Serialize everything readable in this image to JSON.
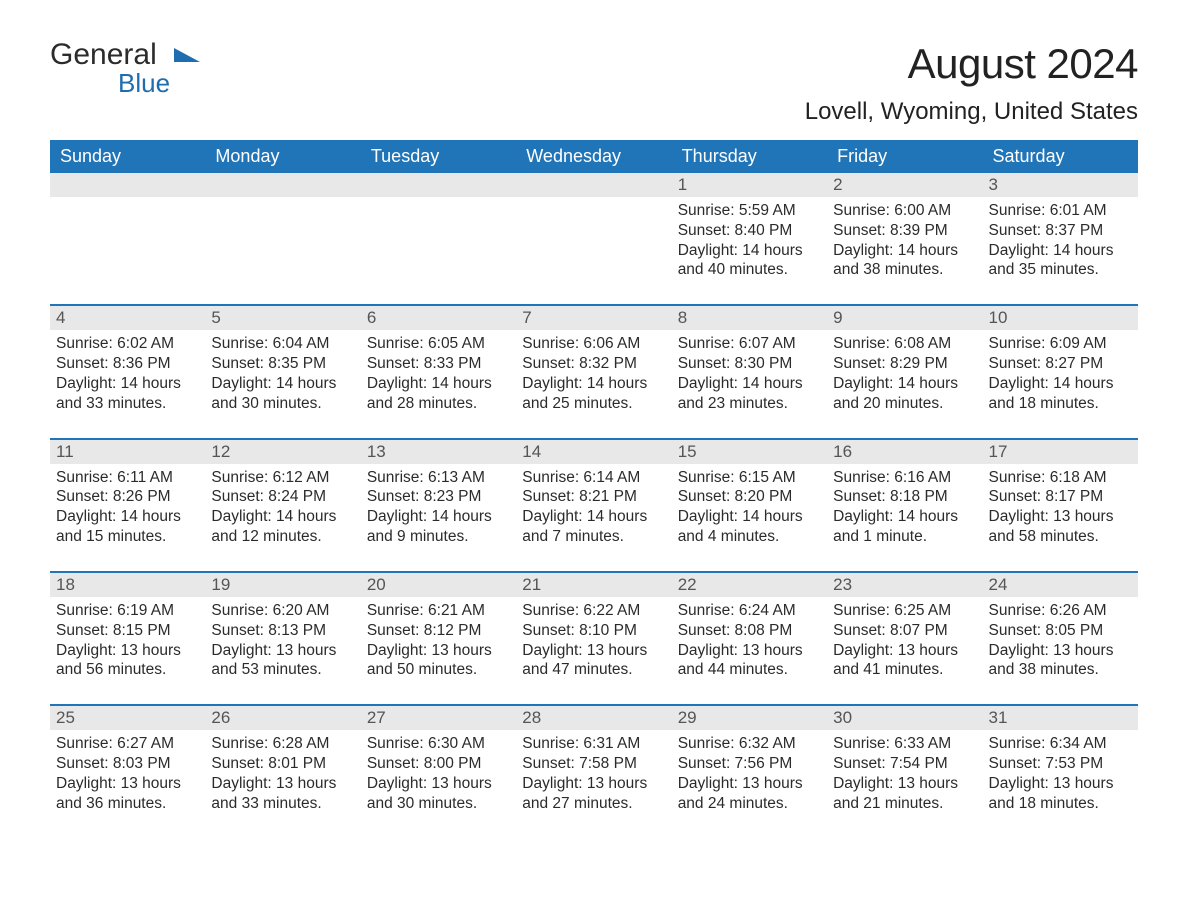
{
  "logo": {
    "line1": "General",
    "line2": "Blue",
    "brand_color": "#1f6db1"
  },
  "title": "August 2024",
  "location": "Lovell, Wyoming, United States",
  "header_bg": "#2074b8",
  "header_fg": "#ffffff",
  "daynum_bg": "#e8e8e8",
  "text_color": "#2b2b2b",
  "days_of_week": [
    "Sunday",
    "Monday",
    "Tuesday",
    "Wednesday",
    "Thursday",
    "Friday",
    "Saturday"
  ],
  "weeks": [
    [
      {
        "n": "",
        "sunrise": "",
        "sunset": "",
        "daylight": ""
      },
      {
        "n": "",
        "sunrise": "",
        "sunset": "",
        "daylight": ""
      },
      {
        "n": "",
        "sunrise": "",
        "sunset": "",
        "daylight": ""
      },
      {
        "n": "",
        "sunrise": "",
        "sunset": "",
        "daylight": ""
      },
      {
        "n": "1",
        "sunrise": "Sunrise: 5:59 AM",
        "sunset": "Sunset: 8:40 PM",
        "daylight": "Daylight: 14 hours and 40 minutes."
      },
      {
        "n": "2",
        "sunrise": "Sunrise: 6:00 AM",
        "sunset": "Sunset: 8:39 PM",
        "daylight": "Daylight: 14 hours and 38 minutes."
      },
      {
        "n": "3",
        "sunrise": "Sunrise: 6:01 AM",
        "sunset": "Sunset: 8:37 PM",
        "daylight": "Daylight: 14 hours and 35 minutes."
      }
    ],
    [
      {
        "n": "4",
        "sunrise": "Sunrise: 6:02 AM",
        "sunset": "Sunset: 8:36 PM",
        "daylight": "Daylight: 14 hours and 33 minutes."
      },
      {
        "n": "5",
        "sunrise": "Sunrise: 6:04 AM",
        "sunset": "Sunset: 8:35 PM",
        "daylight": "Daylight: 14 hours and 30 minutes."
      },
      {
        "n": "6",
        "sunrise": "Sunrise: 6:05 AM",
        "sunset": "Sunset: 8:33 PM",
        "daylight": "Daylight: 14 hours and 28 minutes."
      },
      {
        "n": "7",
        "sunrise": "Sunrise: 6:06 AM",
        "sunset": "Sunset: 8:32 PM",
        "daylight": "Daylight: 14 hours and 25 minutes."
      },
      {
        "n": "8",
        "sunrise": "Sunrise: 6:07 AM",
        "sunset": "Sunset: 8:30 PM",
        "daylight": "Daylight: 14 hours and 23 minutes."
      },
      {
        "n": "9",
        "sunrise": "Sunrise: 6:08 AM",
        "sunset": "Sunset: 8:29 PM",
        "daylight": "Daylight: 14 hours and 20 minutes."
      },
      {
        "n": "10",
        "sunrise": "Sunrise: 6:09 AM",
        "sunset": "Sunset: 8:27 PM",
        "daylight": "Daylight: 14 hours and 18 minutes."
      }
    ],
    [
      {
        "n": "11",
        "sunrise": "Sunrise: 6:11 AM",
        "sunset": "Sunset: 8:26 PM",
        "daylight": "Daylight: 14 hours and 15 minutes."
      },
      {
        "n": "12",
        "sunrise": "Sunrise: 6:12 AM",
        "sunset": "Sunset: 8:24 PM",
        "daylight": "Daylight: 14 hours and 12 minutes."
      },
      {
        "n": "13",
        "sunrise": "Sunrise: 6:13 AM",
        "sunset": "Sunset: 8:23 PM",
        "daylight": "Daylight: 14 hours and 9 minutes."
      },
      {
        "n": "14",
        "sunrise": "Sunrise: 6:14 AM",
        "sunset": "Sunset: 8:21 PM",
        "daylight": "Daylight: 14 hours and 7 minutes."
      },
      {
        "n": "15",
        "sunrise": "Sunrise: 6:15 AM",
        "sunset": "Sunset: 8:20 PM",
        "daylight": "Daylight: 14 hours and 4 minutes."
      },
      {
        "n": "16",
        "sunrise": "Sunrise: 6:16 AM",
        "sunset": "Sunset: 8:18 PM",
        "daylight": "Daylight: 14 hours and 1 minute."
      },
      {
        "n": "17",
        "sunrise": "Sunrise: 6:18 AM",
        "sunset": "Sunset: 8:17 PM",
        "daylight": "Daylight: 13 hours and 58 minutes."
      }
    ],
    [
      {
        "n": "18",
        "sunrise": "Sunrise: 6:19 AM",
        "sunset": "Sunset: 8:15 PM",
        "daylight": "Daylight: 13 hours and 56 minutes."
      },
      {
        "n": "19",
        "sunrise": "Sunrise: 6:20 AM",
        "sunset": "Sunset: 8:13 PM",
        "daylight": "Daylight: 13 hours and 53 minutes."
      },
      {
        "n": "20",
        "sunrise": "Sunrise: 6:21 AM",
        "sunset": "Sunset: 8:12 PM",
        "daylight": "Daylight: 13 hours and 50 minutes."
      },
      {
        "n": "21",
        "sunrise": "Sunrise: 6:22 AM",
        "sunset": "Sunset: 8:10 PM",
        "daylight": "Daylight: 13 hours and 47 minutes."
      },
      {
        "n": "22",
        "sunrise": "Sunrise: 6:24 AM",
        "sunset": "Sunset: 8:08 PM",
        "daylight": "Daylight: 13 hours and 44 minutes."
      },
      {
        "n": "23",
        "sunrise": "Sunrise: 6:25 AM",
        "sunset": "Sunset: 8:07 PM",
        "daylight": "Daylight: 13 hours and 41 minutes."
      },
      {
        "n": "24",
        "sunrise": "Sunrise: 6:26 AM",
        "sunset": "Sunset: 8:05 PM",
        "daylight": "Daylight: 13 hours and 38 minutes."
      }
    ],
    [
      {
        "n": "25",
        "sunrise": "Sunrise: 6:27 AM",
        "sunset": "Sunset: 8:03 PM",
        "daylight": "Daylight: 13 hours and 36 minutes."
      },
      {
        "n": "26",
        "sunrise": "Sunrise: 6:28 AM",
        "sunset": "Sunset: 8:01 PM",
        "daylight": "Daylight: 13 hours and 33 minutes."
      },
      {
        "n": "27",
        "sunrise": "Sunrise: 6:30 AM",
        "sunset": "Sunset: 8:00 PM",
        "daylight": "Daylight: 13 hours and 30 minutes."
      },
      {
        "n": "28",
        "sunrise": "Sunrise: 6:31 AM",
        "sunset": "Sunset: 7:58 PM",
        "daylight": "Daylight: 13 hours and 27 minutes."
      },
      {
        "n": "29",
        "sunrise": "Sunrise: 6:32 AM",
        "sunset": "Sunset: 7:56 PM",
        "daylight": "Daylight: 13 hours and 24 minutes."
      },
      {
        "n": "30",
        "sunrise": "Sunrise: 6:33 AM",
        "sunset": "Sunset: 7:54 PM",
        "daylight": "Daylight: 13 hours and 21 minutes."
      },
      {
        "n": "31",
        "sunrise": "Sunrise: 6:34 AM",
        "sunset": "Sunset: 7:53 PM",
        "daylight": "Daylight: 13 hours and 18 minutes."
      }
    ]
  ]
}
